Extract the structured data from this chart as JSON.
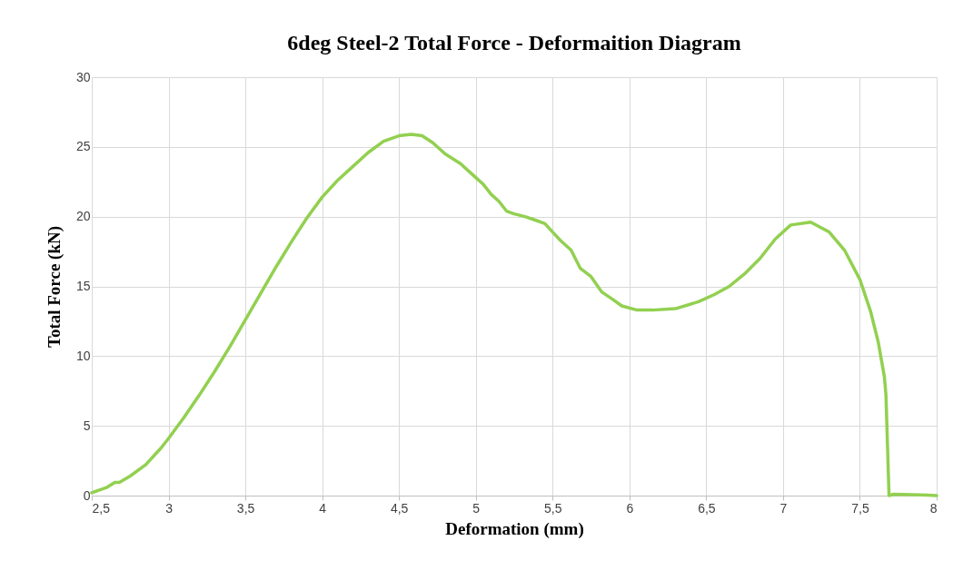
{
  "chart_data": {
    "type": "line",
    "title": "6deg Steel-2 Total Force - Deformaition Diagram",
    "xlabel": "Deformation (mm)",
    "ylabel": "Total Force (kN)",
    "x": [
      2.5,
      2.6,
      2.65,
      2.68,
      2.75,
      2.85,
      2.95,
      3.0,
      3.1,
      3.2,
      3.3,
      3.4,
      3.5,
      3.6,
      3.7,
      3.8,
      3.9,
      4.0,
      4.1,
      4.2,
      4.3,
      4.4,
      4.5,
      4.58,
      4.65,
      4.72,
      4.8,
      4.9,
      5.0,
      5.05,
      5.1,
      5.15,
      5.2,
      5.25,
      5.32,
      5.4,
      5.45,
      5.5,
      5.55,
      5.62,
      5.68,
      5.75,
      5.82,
      5.9,
      5.95,
      6.05,
      6.15,
      6.3,
      6.45,
      6.55,
      6.65,
      6.75,
      6.85,
      6.95,
      7.05,
      7.18,
      7.3,
      7.4,
      7.5,
      7.57,
      7.62,
      7.66,
      7.67,
      7.69,
      7.72,
      7.9,
      8.0
    ],
    "series": [
      {
        "color": "#92d050",
        "values": [
          0.2,
          0.6,
          0.95,
          0.95,
          1.4,
          2.2,
          3.4,
          4.1,
          5.6,
          7.2,
          8.9,
          10.7,
          12.6,
          14.5,
          16.4,
          18.2,
          19.9,
          21.4,
          22.6,
          23.6,
          24.6,
          25.4,
          25.8,
          25.9,
          25.8,
          25.3,
          24.5,
          23.8,
          22.8,
          22.3,
          21.6,
          21.1,
          20.4,
          20.2,
          20.0,
          19.7,
          19.5,
          18.9,
          18.3,
          17.6,
          16.3,
          15.7,
          14.6,
          14.0,
          13.6,
          13.3,
          13.3,
          13.4,
          13.9,
          14.4,
          15.0,
          15.9,
          17.0,
          18.4,
          19.4,
          19.6,
          18.9,
          17.6,
          15.5,
          13.2,
          11.0,
          8.5,
          7.2,
          0.0,
          0.1,
          0.05,
          0.0
        ]
      }
    ],
    "xlim": [
      2.5,
      8
    ],
    "xticks": [
      {
        "value": 2.5,
        "label": "2,5"
      },
      3,
      {
        "value": 3.5,
        "label": "3,5"
      },
      4,
      {
        "value": 4.5,
        "label": "4,5"
      },
      5,
      {
        "value": 5.5,
        "label": "5,5"
      },
      6,
      {
        "value": 6.5,
        "label": "6,5"
      },
      7,
      {
        "value": 7.5,
        "label": "7,5"
      },
      8
    ],
    "ylim": [
      0,
      30
    ],
    "yticks": [
      0,
      5,
      10,
      15,
      20,
      25,
      30
    ],
    "grid": true,
    "marker": "none",
    "line_style": "solid"
  }
}
